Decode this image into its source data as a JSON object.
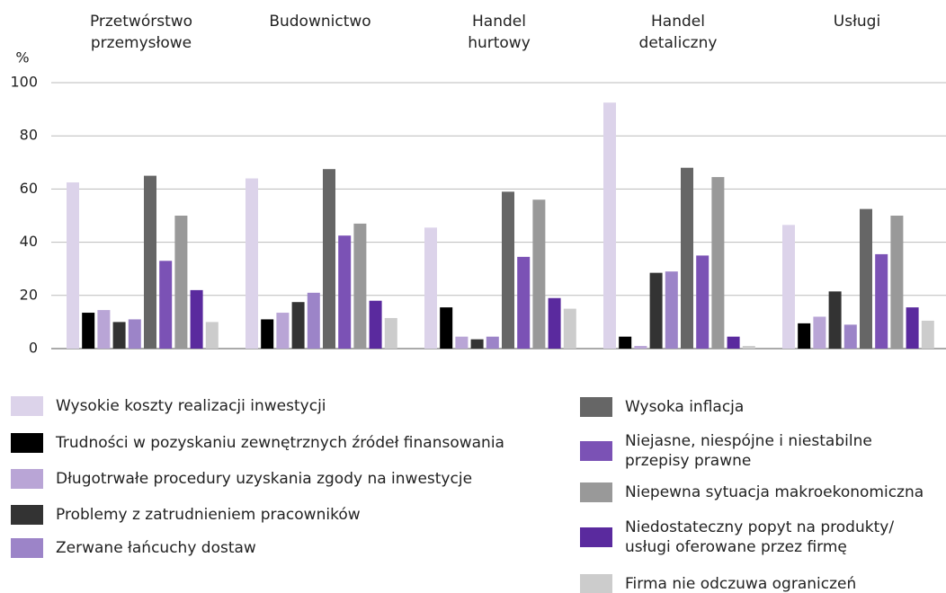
{
  "chart_data": {
    "type": "bar",
    "y_label": "%",
    "categories": [
      "Przetwórstwo\nprzemysłowe",
      "Budownictwo",
      "Handel\nhurtowy",
      "Handel\ndetaliczny",
      "Usługi"
    ],
    "ylim": [
      0,
      100
    ],
    "yticks": [
      0,
      20,
      40,
      60,
      80,
      100
    ],
    "grid": true,
    "series": [
      {
        "name": "Wysokie koszty realizacji inwestycji",
        "color": "#dcd3ea",
        "values": [
          62.5,
          64,
          45.5,
          92.5,
          46.5
        ]
      },
      {
        "name": "Trudności w pozyskaniu zewnętrznych źródeł finansowania",
        "color": "#000000",
        "values": [
          13.5,
          11,
          15.5,
          4.5,
          9.5
        ]
      },
      {
        "name": "Długotrwałe procedury uzyskania zgody na inwestycje",
        "color": "#b9a5d6",
        "values": [
          14.5,
          13.5,
          4.5,
          1,
          12
        ]
      },
      {
        "name": "Problemy z zatrudnieniem pracowników",
        "color": "#333333",
        "values": [
          10,
          17.5,
          3.5,
          28.5,
          21.5
        ]
      },
      {
        "name": "Zerwane łańcuchy dostaw",
        "color": "#9c84c8",
        "values": [
          11,
          21,
          4.5,
          29,
          9
        ]
      },
      {
        "name": "Wysoka inflacja",
        "color": "#666666",
        "values": [
          65,
          67.5,
          59,
          68,
          52.5
        ]
      },
      {
        "name": "Niejasne, niespójne i niestabilne\nprzepisy prawne",
        "color": "#7b52b5",
        "values": [
          33,
          42.5,
          34.5,
          35,
          35.5
        ]
      },
      {
        "name": "Niepewna sytuacja makroekonomiczna",
        "color": "#999999",
        "values": [
          50,
          47,
          56,
          64.5,
          50
        ]
      },
      {
        "name": "Niedostateczny popyt na produkty/\nusługi oferowane przez firmę",
        "color": "#5a2a9e",
        "values": [
          22,
          18,
          19,
          4.5,
          15.5
        ]
      },
      {
        "name": "Firma nie odczuwa ograniczeń",
        "color": "#cccccc",
        "values": [
          10,
          11.5,
          15,
          1,
          10.5
        ]
      }
    ]
  }
}
